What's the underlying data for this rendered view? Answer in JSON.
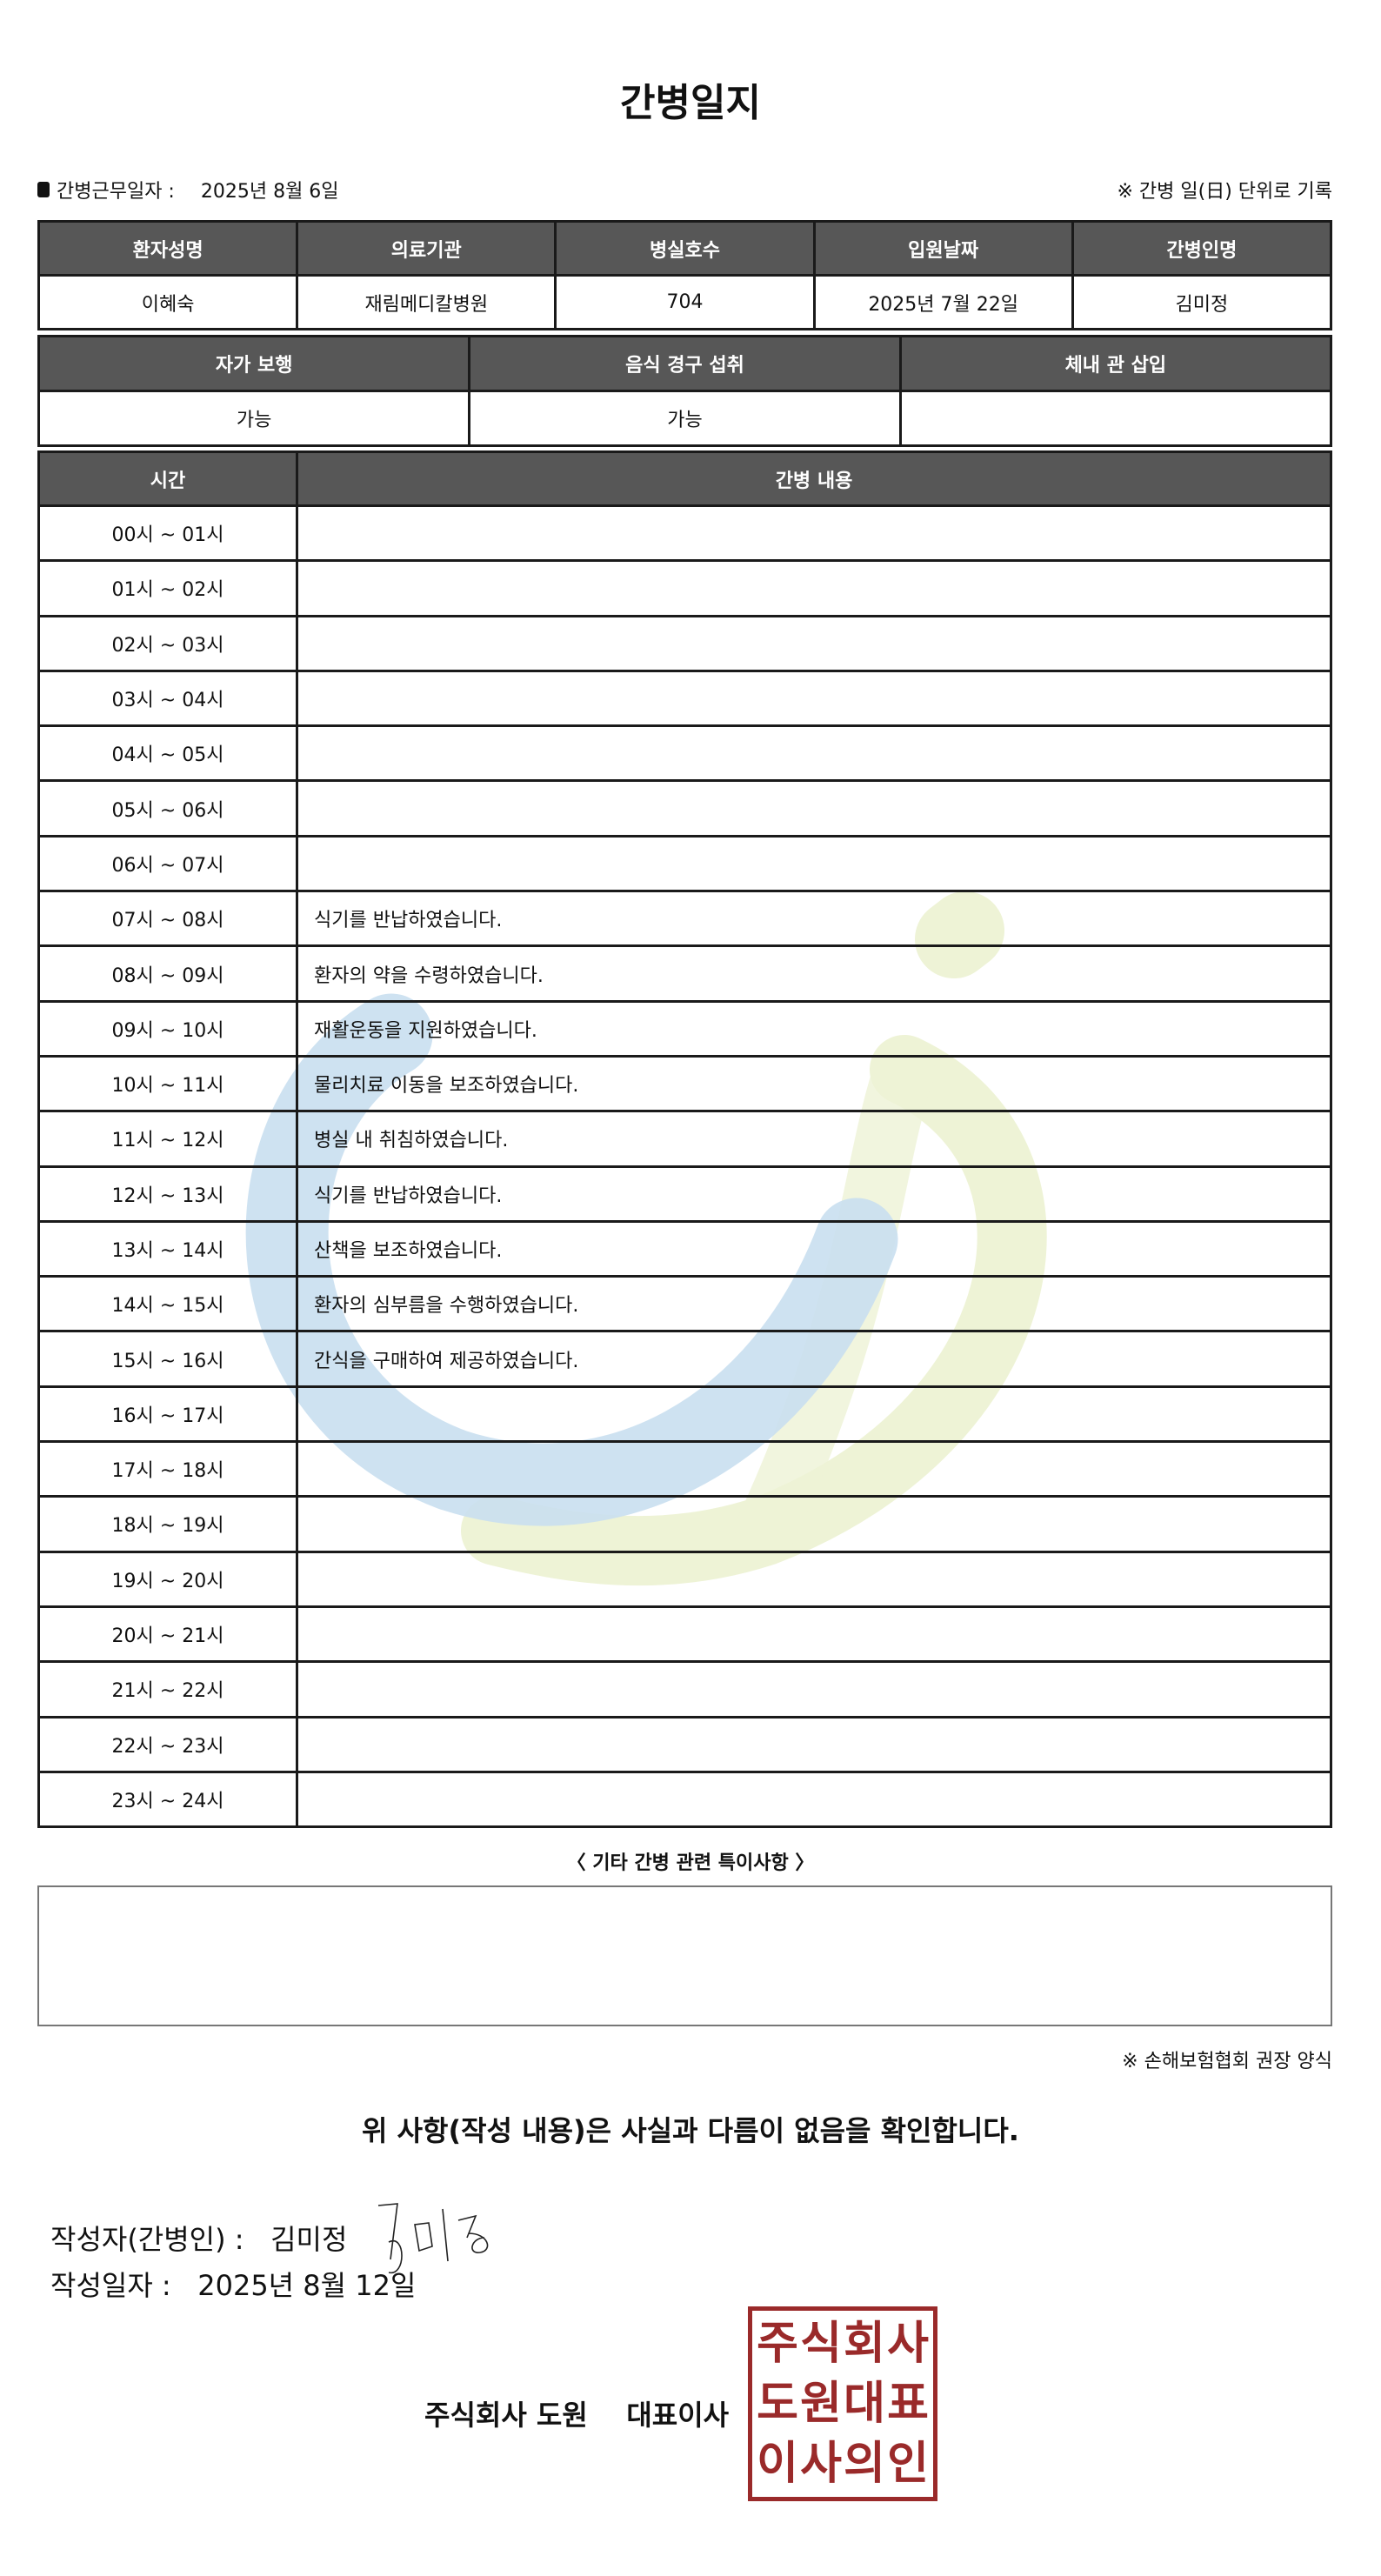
{
  "title": "간병일지",
  "work_date_label": "간병근무일자  :",
  "work_date": "2025년 8월 6일",
  "unit_note": "※ 간병 일(日) 단위로 기록",
  "info": {
    "headers": [
      "환자성명",
      "의료기관",
      "병실호수",
      "입원날짜",
      "간병인명"
    ],
    "values": [
      "이혜숙",
      "재림메디칼병원",
      "704",
      "2025년 7월 22일",
      "김미정"
    ]
  },
  "status": {
    "headers": [
      "자가 보행",
      "음식 경구 섭취",
      "체내 관 삽입"
    ],
    "values": [
      "가능",
      "가능",
      ""
    ]
  },
  "log": {
    "headers": [
      "시간",
      "간병 내용"
    ],
    "rows": [
      {
        "time": "00시 ~ 01시",
        "content": ""
      },
      {
        "time": "01시 ~ 02시",
        "content": ""
      },
      {
        "time": "02시 ~ 03시",
        "content": ""
      },
      {
        "time": "03시 ~ 04시",
        "content": ""
      },
      {
        "time": "04시 ~ 05시",
        "content": ""
      },
      {
        "time": "05시 ~ 06시",
        "content": ""
      },
      {
        "time": "06시 ~ 07시",
        "content": ""
      },
      {
        "time": "07시 ~ 08시",
        "content": "식기를 반납하였습니다."
      },
      {
        "time": "08시 ~ 09시",
        "content": "환자의 약을 수령하였습니다."
      },
      {
        "time": "09시 ~ 10시",
        "content": "재활운동을 지원하였습니다."
      },
      {
        "time": "10시 ~ 11시",
        "content": "물리치료 이동을 보조하였습니다."
      },
      {
        "time": "11시 ~ 12시",
        "content": "병실 내 취침하였습니다."
      },
      {
        "time": "12시 ~ 13시",
        "content": "식기를 반납하였습니다."
      },
      {
        "time": "13시 ~ 14시",
        "content": "산책을 보조하였습니다."
      },
      {
        "time": "14시 ~ 15시",
        "content": "환자의 심부름을 수행하였습니다."
      },
      {
        "time": "15시 ~ 16시",
        "content": "간식을 구매하여 제공하였습니다."
      },
      {
        "time": "16시 ~ 17시",
        "content": ""
      },
      {
        "time": "17시 ~ 18시",
        "content": ""
      },
      {
        "time": "18시 ~ 19시",
        "content": ""
      },
      {
        "time": "19시 ~ 20시",
        "content": ""
      },
      {
        "time": "20시 ~ 21시",
        "content": ""
      },
      {
        "time": "21시 ~ 22시",
        "content": ""
      },
      {
        "time": "22시 ~ 23시",
        "content": ""
      },
      {
        "time": "23시 ~ 24시",
        "content": ""
      }
    ]
  },
  "notes_title": "〈 기타 간병 관련 특이사항 〉",
  "notes": "",
  "assoc_note": "※ 손해보험협회 권장 양식",
  "confirm": "위 사항(작성 내용)은 사실과 다름이 없음을 확인합니다.",
  "writer_label": "작성자(간병인) :",
  "writer_name": "김미정",
  "signature": "김미정",
  "write_date_label": "작성일자 :",
  "write_date": "2025년 8월 12일",
  "company": "주식회사 도원    대표이사",
  "stamp": "주식회사도원대표이사의인",
  "colors": {
    "header_bg": "#575757",
    "stamp": "#9a2a2a",
    "watermark_blue": "#c9dff0",
    "watermark_green": "#eef3d6"
  }
}
